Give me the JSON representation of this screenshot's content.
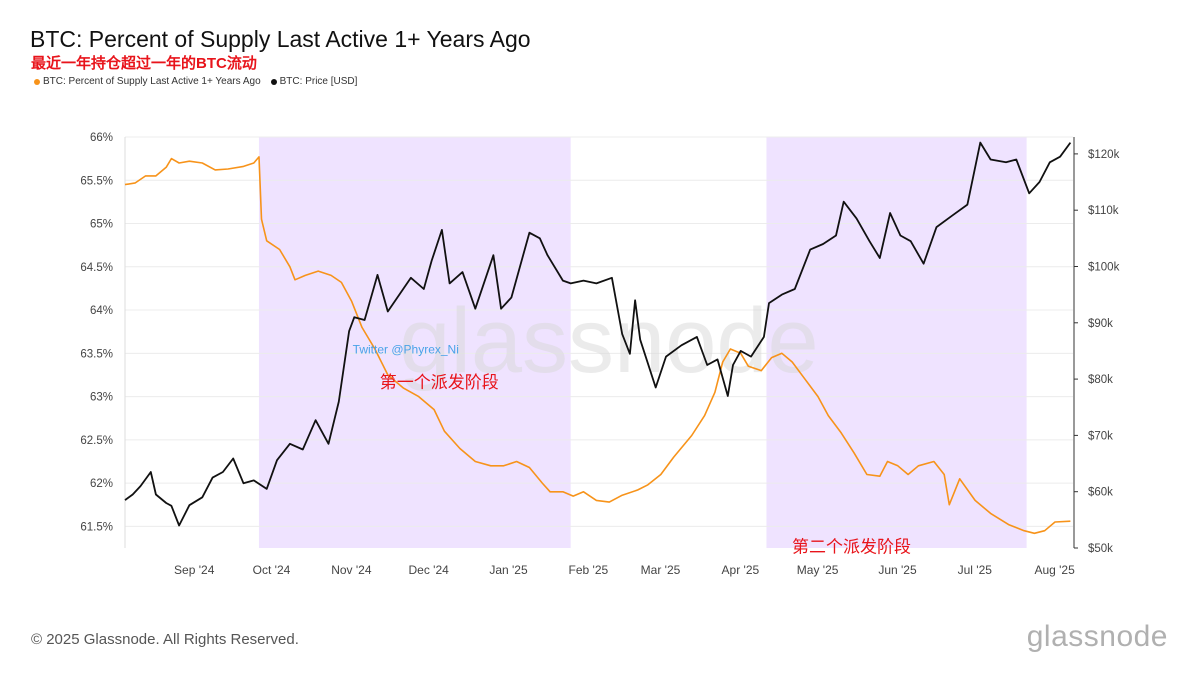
{
  "header": {
    "title": "BTC: Percent of Supply Last Active 1+ Years Ago",
    "subtitle": "最近一年持仓超过一年的BTC流动"
  },
  "legend": [
    {
      "label": "BTC: Percent of Supply Last Active 1+ Years Ago",
      "color": "#f7931a"
    },
    {
      "label": "BTC: Price [USD]",
      "color": "#111111"
    }
  ],
  "footer": {
    "copyright": "© 2025 Glassnode. All Rights Reserved.",
    "logo": "glassnode"
  },
  "chart_data": {
    "type": "line",
    "title": "BTC: Percent of Supply Last Active 1+ Years Ago",
    "watermark": "glassnode",
    "x_range": [
      "2024-08-16",
      "2025-08-19"
    ],
    "x_tick_labels": [
      {
        "date": "2024-09-01",
        "label": "Sep '24"
      },
      {
        "date": "2024-10-01",
        "label": "Oct '24"
      },
      {
        "date": "2024-11-01",
        "label": "Nov '24"
      },
      {
        "date": "2024-12-01",
        "label": "Dec '24"
      },
      {
        "date": "2025-01-01",
        "label": "Jan '25"
      },
      {
        "date": "2025-02-01",
        "label": "Feb '25"
      },
      {
        "date": "2025-03-01",
        "label": "Mar '25"
      },
      {
        "date": "2025-04-01",
        "label": "Apr '25"
      },
      {
        "date": "2025-05-01",
        "label": "May '25"
      },
      {
        "date": "2025-06-01",
        "label": "Jun '25"
      },
      {
        "date": "2025-07-01",
        "label": "Jul '25"
      },
      {
        "date": "2025-08-01",
        "label": "Aug '25"
      }
    ],
    "y_left": {
      "min": 61.25,
      "max": 66.0,
      "ticks": [
        61.5,
        62,
        62.5,
        63,
        63.5,
        64,
        64.5,
        65,
        65.5,
        66
      ],
      "tick_labels": [
        "61.5%",
        "62%",
        "62.5%",
        "63%",
        "63.5%",
        "64%",
        "64.5%",
        "65%",
        "65.5%",
        "66%"
      ]
    },
    "y_right": {
      "min": 50000,
      "max": 123000,
      "ticks": [
        50000,
        60000,
        70000,
        80000,
        90000,
        100000,
        110000,
        120000
      ],
      "tick_labels": [
        "$50k",
        "$60k",
        "$70k",
        "$80k",
        "$90k",
        "$100k",
        "$110k",
        "$120k"
      ]
    },
    "grid": true,
    "shaded_regions": [
      {
        "start": "2024-10-07",
        "end": "2025-02-05",
        "color": "#efe3ff"
      },
      {
        "start": "2025-04-22",
        "end": "2025-08-01",
        "color": "#efe3ff"
      }
    ],
    "annotations": [
      {
        "text": "第一个派发阶段",
        "date": "2024-12-16",
        "value": 63.1,
        "axis": "left",
        "color": "#e8141b"
      },
      {
        "text": "第二个派发阶段",
        "date": "2025-05-25",
        "value": 61.2,
        "axis": "left",
        "color": "#e8141b"
      },
      {
        "text": "Twitter @Phyrex_Ni",
        "date": "2024-12-03",
        "value": 63.5,
        "axis": "left",
        "color": "#4aa3e8"
      }
    ],
    "series": [
      {
        "name": "BTC: Percent of Supply Last Active 1+ Years Ago",
        "axis": "left",
        "color": "#f7931a",
        "points": [
          [
            "2024-08-16",
            65.45
          ],
          [
            "2024-08-20",
            65.47
          ],
          [
            "2024-08-24",
            65.55
          ],
          [
            "2024-08-28",
            65.55
          ],
          [
            "2024-09-01",
            65.65
          ],
          [
            "2024-09-03",
            65.75
          ],
          [
            "2024-09-06",
            65.7
          ],
          [
            "2024-09-10",
            65.72
          ],
          [
            "2024-09-15",
            65.7
          ],
          [
            "2024-09-20",
            65.62
          ],
          [
            "2024-09-25",
            65.63
          ],
          [
            "2024-10-01",
            65.66
          ],
          [
            "2024-10-05",
            65.7
          ],
          [
            "2024-10-07",
            65.77
          ],
          [
            "2024-10-08",
            65.05
          ],
          [
            "2024-10-10",
            64.8
          ],
          [
            "2024-10-15",
            64.7
          ],
          [
            "2024-10-19",
            64.5
          ],
          [
            "2024-10-21",
            64.35
          ],
          [
            "2024-10-25",
            64.4
          ],
          [
            "2024-10-30",
            64.45
          ],
          [
            "2024-11-04",
            64.4
          ],
          [
            "2024-11-08",
            64.32
          ],
          [
            "2024-11-12",
            64.1
          ],
          [
            "2024-11-16",
            63.8
          ],
          [
            "2024-11-21",
            63.55
          ],
          [
            "2024-11-26",
            63.25
          ],
          [
            "2024-12-02",
            63.1
          ],
          [
            "2024-12-08",
            63.0
          ],
          [
            "2024-12-14",
            62.85
          ],
          [
            "2024-12-18",
            62.6
          ],
          [
            "2024-12-24",
            62.4
          ],
          [
            "2024-12-30",
            62.25
          ],
          [
            "2025-01-05",
            62.2
          ],
          [
            "2025-01-10",
            62.2
          ],
          [
            "2025-01-15",
            62.25
          ],
          [
            "2025-01-20",
            62.18
          ],
          [
            "2025-01-25",
            62.0
          ],
          [
            "2025-01-28",
            61.9
          ],
          [
            "2025-02-02",
            61.9
          ],
          [
            "2025-02-06",
            61.85
          ],
          [
            "2025-02-10",
            61.9
          ],
          [
            "2025-02-15",
            61.8
          ],
          [
            "2025-02-20",
            61.78
          ],
          [
            "2025-02-25",
            61.86
          ],
          [
            "2025-03-03",
            61.92
          ],
          [
            "2025-03-07",
            61.98
          ],
          [
            "2025-03-12",
            62.1
          ],
          [
            "2025-03-17",
            62.3
          ],
          [
            "2025-03-24",
            62.55
          ],
          [
            "2025-03-29",
            62.78
          ],
          [
            "2025-04-02",
            63.05
          ],
          [
            "2025-04-05",
            63.4
          ],
          [
            "2025-04-08",
            63.55
          ],
          [
            "2025-04-12",
            63.5
          ],
          [
            "2025-04-15",
            63.35
          ],
          [
            "2025-04-20",
            63.3
          ],
          [
            "2025-04-24",
            63.45
          ],
          [
            "2025-04-28",
            63.5
          ],
          [
            "2025-05-02",
            63.4
          ],
          [
            "2025-05-07",
            63.2
          ],
          [
            "2025-05-12",
            63.0
          ],
          [
            "2025-05-16",
            62.78
          ],
          [
            "2025-05-21",
            62.58
          ],
          [
            "2025-05-26",
            62.35
          ],
          [
            "2025-05-31",
            62.1
          ],
          [
            "2025-06-05",
            62.08
          ],
          [
            "2025-06-08",
            62.25
          ],
          [
            "2025-06-12",
            62.2
          ],
          [
            "2025-06-16",
            62.1
          ],
          [
            "2025-06-20",
            62.2
          ],
          [
            "2025-06-26",
            62.25
          ],
          [
            "2025-06-30",
            62.1
          ],
          [
            "2025-07-02",
            61.75
          ],
          [
            "2025-07-06",
            62.05
          ],
          [
            "2025-07-12",
            61.8
          ],
          [
            "2025-07-18",
            61.65
          ],
          [
            "2025-07-25",
            61.52
          ],
          [
            "2025-07-31",
            61.45
          ],
          [
            "2025-08-04",
            61.42
          ],
          [
            "2025-08-08",
            61.45
          ],
          [
            "2025-08-12",
            61.55
          ],
          [
            "2025-08-18",
            61.56
          ]
        ]
      },
      {
        "name": "BTC: Price [USD]",
        "axis": "right",
        "color": "#111111",
        "points": [
          [
            "2024-08-16",
            58500
          ],
          [
            "2024-08-19",
            59500
          ],
          [
            "2024-08-22",
            61000
          ],
          [
            "2024-08-26",
            63500
          ],
          [
            "2024-08-28",
            59500
          ],
          [
            "2024-09-01",
            58000
          ],
          [
            "2024-09-03",
            57500
          ],
          [
            "2024-09-06",
            54000
          ],
          [
            "2024-09-10",
            57600
          ],
          [
            "2024-09-15",
            59000
          ],
          [
            "2024-09-19",
            62500
          ],
          [
            "2024-09-23",
            63500
          ],
          [
            "2024-09-27",
            65900
          ],
          [
            "2024-10-01",
            61500
          ],
          [
            "2024-10-05",
            62000
          ],
          [
            "2024-10-10",
            60500
          ],
          [
            "2024-10-14",
            65600
          ],
          [
            "2024-10-19",
            68500
          ],
          [
            "2024-10-24",
            67500
          ],
          [
            "2024-10-29",
            72700
          ],
          [
            "2024-11-03",
            68500
          ],
          [
            "2024-11-07",
            76000
          ],
          [
            "2024-11-11",
            88500
          ],
          [
            "2024-11-13",
            91000
          ],
          [
            "2024-11-17",
            90500
          ],
          [
            "2024-11-22",
            98500
          ],
          [
            "2024-11-26",
            92000
          ],
          [
            "2024-12-02",
            96000
          ],
          [
            "2024-12-05",
            98000
          ],
          [
            "2024-12-10",
            96000
          ],
          [
            "2024-12-13",
            101000
          ],
          [
            "2024-12-17",
            106500
          ],
          [
            "2024-12-20",
            97000
          ],
          [
            "2024-12-25",
            99000
          ],
          [
            "2024-12-30",
            92500
          ],
          [
            "2025-01-06",
            102000
          ],
          [
            "2025-01-09",
            92500
          ],
          [
            "2025-01-13",
            94500
          ],
          [
            "2025-01-20",
            106000
          ],
          [
            "2025-01-24",
            105000
          ],
          [
            "2025-01-27",
            102000
          ],
          [
            "2025-02-02",
            97500
          ],
          [
            "2025-02-05",
            97000
          ],
          [
            "2025-02-10",
            97500
          ],
          [
            "2025-02-15",
            97000
          ],
          [
            "2025-02-21",
            98000
          ],
          [
            "2025-02-25",
            88000
          ],
          [
            "2025-02-28",
            84500
          ],
          [
            "2025-03-02",
            94000
          ],
          [
            "2025-03-04",
            87000
          ],
          [
            "2025-03-10",
            78500
          ],
          [
            "2025-03-14",
            84000
          ],
          [
            "2025-03-20",
            86000
          ],
          [
            "2025-03-26",
            87500
          ],
          [
            "2025-03-30",
            82500
          ],
          [
            "2025-04-03",
            83500
          ],
          [
            "2025-04-07",
            77000
          ],
          [
            "2025-04-09",
            82500
          ],
          [
            "2025-04-12",
            85000
          ],
          [
            "2025-04-16",
            84000
          ],
          [
            "2025-04-21",
            87500
          ],
          [
            "2025-04-23",
            93500
          ],
          [
            "2025-04-28",
            95000
          ],
          [
            "2025-05-03",
            96000
          ],
          [
            "2025-05-09",
            103000
          ],
          [
            "2025-05-14",
            104000
          ],
          [
            "2025-05-19",
            105500
          ],
          [
            "2025-05-22",
            111500
          ],
          [
            "2025-05-27",
            108500
          ],
          [
            "2025-06-01",
            104500
          ],
          [
            "2025-06-05",
            101500
          ],
          [
            "2025-06-09",
            109500
          ],
          [
            "2025-06-13",
            105500
          ],
          [
            "2025-06-17",
            104500
          ],
          [
            "2025-06-22",
            100500
          ],
          [
            "2025-06-27",
            107000
          ],
          [
            "2025-07-03",
            109000
          ],
          [
            "2025-07-09",
            111000
          ],
          [
            "2025-07-14",
            122000
          ],
          [
            "2025-07-18",
            119000
          ],
          [
            "2025-07-24",
            118500
          ],
          [
            "2025-07-28",
            119000
          ],
          [
            "2025-08-02",
            113000
          ],
          [
            "2025-08-06",
            115000
          ],
          [
            "2025-08-10",
            118500
          ],
          [
            "2025-08-14",
            119500
          ],
          [
            "2025-08-18",
            122000
          ]
        ]
      }
    ]
  }
}
